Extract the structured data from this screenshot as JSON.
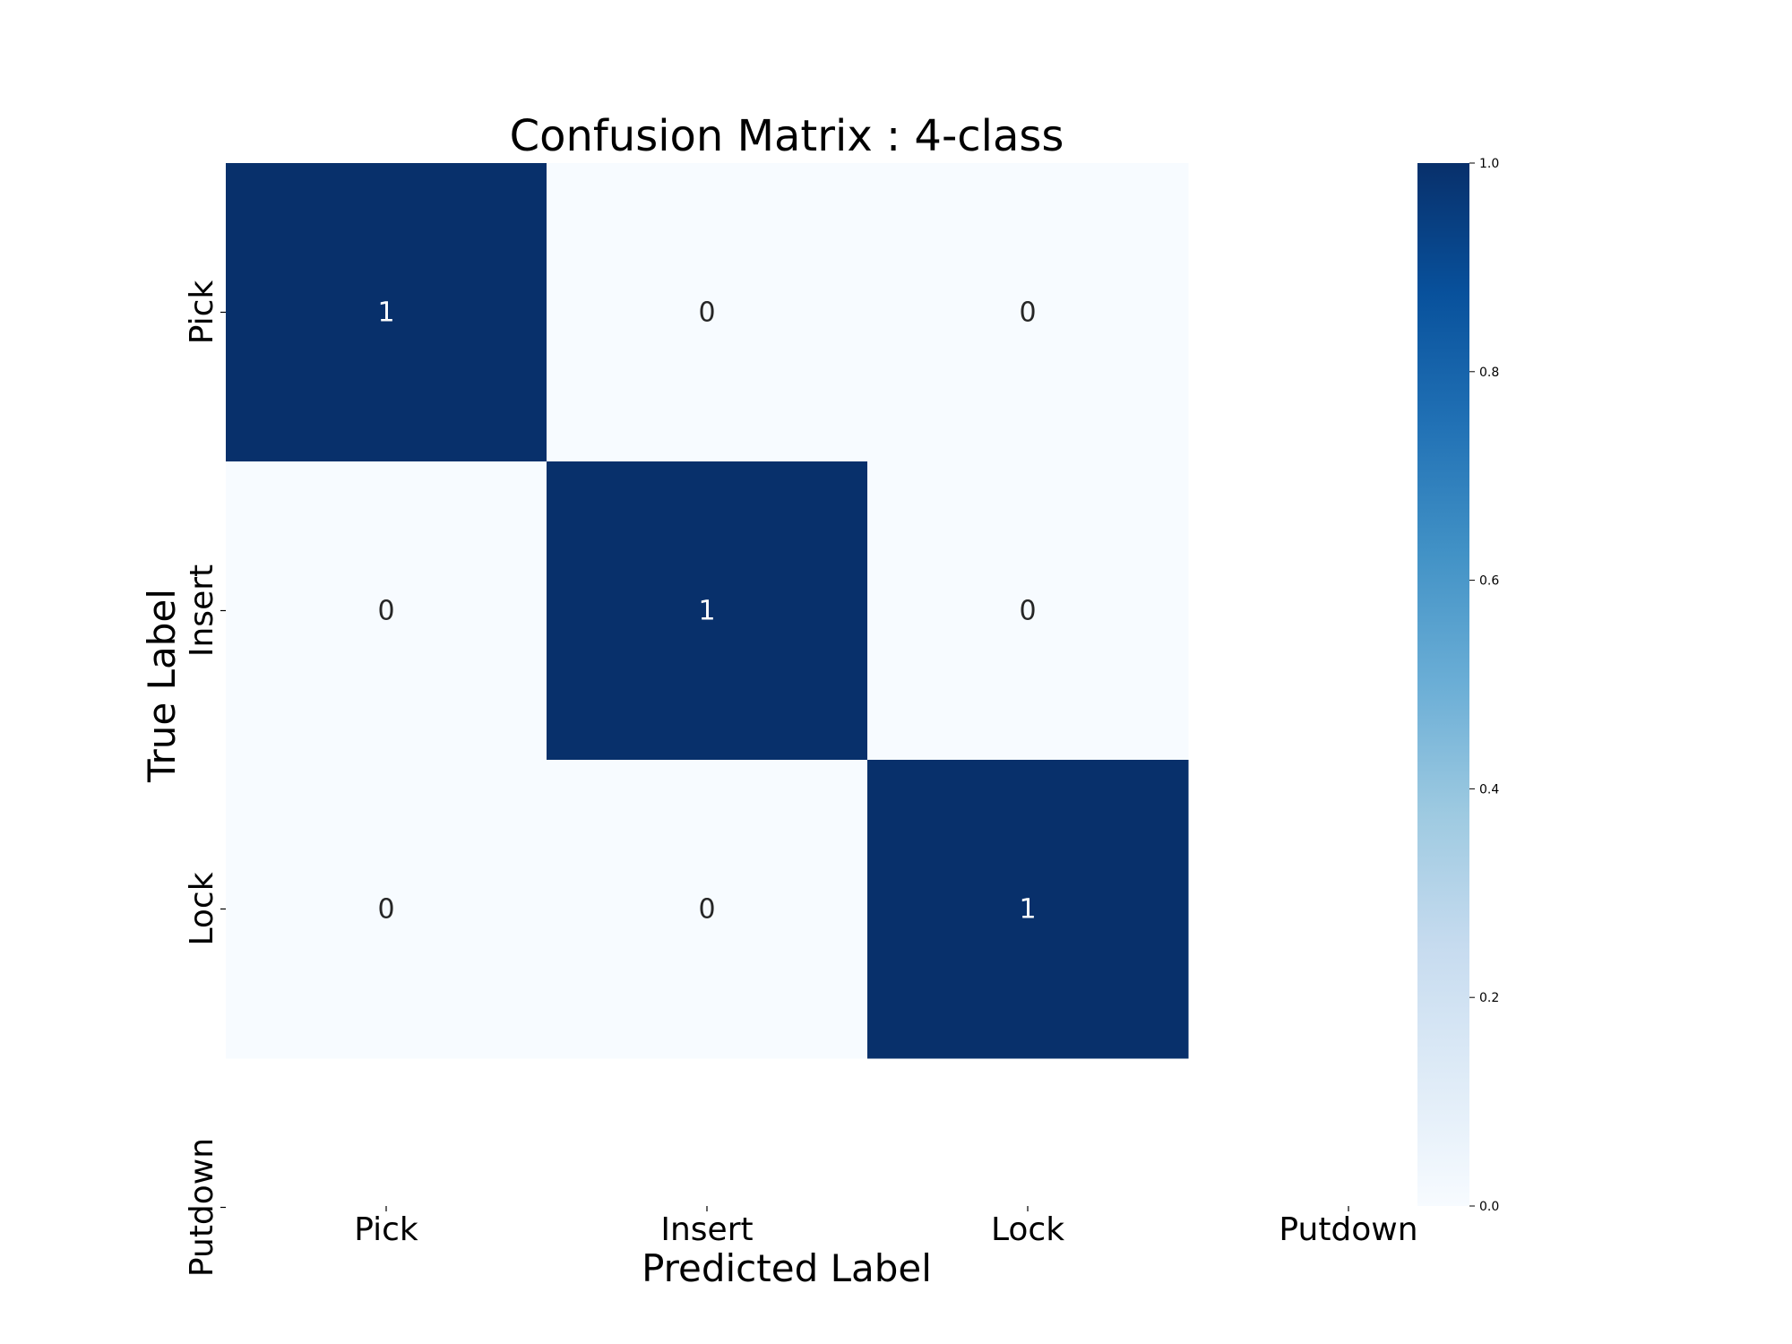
{
  "chart_data": {
    "type": "heatmap",
    "title": "Confusion Matrix : 4-class",
    "xlabel": "Predicted Label",
    "ylabel": "True Label",
    "x_categories": [
      "Pick",
      "Insert",
      "Lock",
      "Putdown"
    ],
    "y_categories": [
      "Pick",
      "Insert",
      "Lock",
      "Putdown"
    ],
    "rows_with_data": 3,
    "cols_with_data": 3,
    "values": [
      [
        1,
        0,
        0
      ],
      [
        0,
        1,
        0
      ],
      [
        0,
        0,
        1
      ]
    ],
    "colorbar": {
      "min": 0.0,
      "max": 1.0,
      "ticks": [
        "0.0",
        "0.2",
        "0.4",
        "0.6",
        "0.8",
        "1.0"
      ],
      "colormap": "Blues",
      "low_color": "#f7fbff",
      "high_color": "#08306b"
    },
    "annotation_colors": {
      "on_dark": "#ffffff",
      "on_light": "#262626"
    }
  }
}
